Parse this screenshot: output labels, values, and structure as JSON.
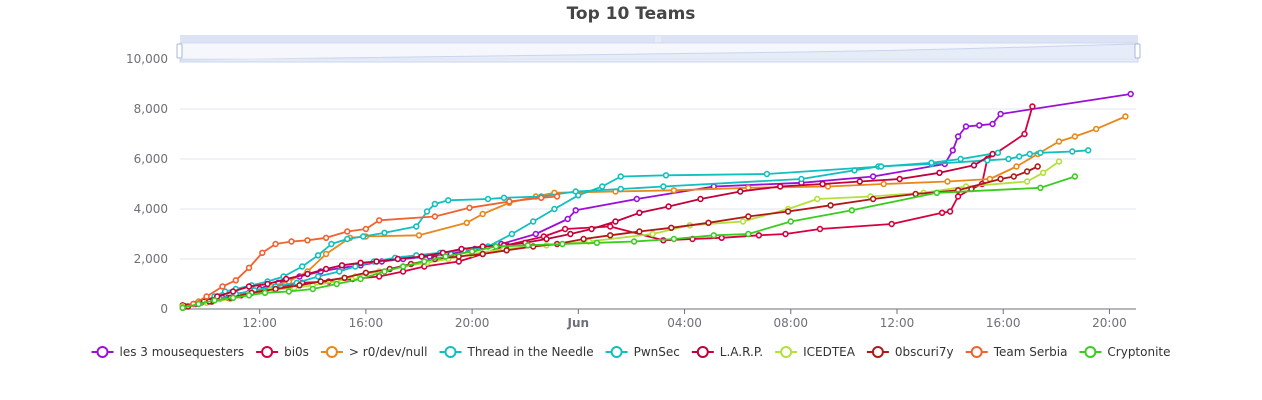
{
  "chart_data": {
    "type": "line",
    "title": "Top 10 Teams",
    "xlabel": "",
    "ylabel": "",
    "ylim": [
      0,
      10000
    ],
    "y_ticks": [
      0,
      2000,
      4000,
      6000,
      8000,
      10000
    ],
    "y_tick_labels": [
      "0",
      "2,000",
      "4,000",
      "6,000",
      "8,000",
      "10,000"
    ],
    "x_unit": "hours",
    "xlim": [
      9.0,
      45.0
    ],
    "x_ticks": [
      12,
      16,
      20,
      24,
      28,
      32,
      36,
      40,
      44
    ],
    "x_tick_labels": [
      "12:00",
      "16:00",
      "20:00",
      "Jun",
      "04:00",
      "08:00",
      "12:00",
      "16:00",
      "20:00"
    ],
    "grid": true,
    "legend_position": "bottom",
    "data_zoom": true,
    "series": [
      {
        "name": "les 3 mousequesters",
        "color": "#9b10d6",
        "x": [
          9.1,
          9.6,
          10.2,
          10.6,
          11.1,
          11.6,
          12.2,
          12.7,
          13.5,
          14.3,
          15.1,
          15.8,
          16.6,
          17.4,
          18.4,
          19.2,
          20.1,
          21.1,
          22.4,
          23.6,
          23.9,
          26.2,
          29.1,
          32.4,
          35.1,
          37.8,
          38.1,
          38.3,
          38.6,
          39.1,
          39.6,
          39.9,
          44.8
        ],
        "y": [
          100,
          200,
          300,
          450,
          550,
          650,
          800,
          1050,
          1300,
          1500,
          1650,
          1750,
          1900,
          2000,
          2100,
          2200,
          2400,
          2600,
          3000,
          3600,
          3950,
          4400,
          4900,
          5050,
          5300,
          5800,
          6350,
          6900,
          7300,
          7350,
          7400,
          7800,
          8600
        ]
      },
      {
        "name": "bi0s",
        "color": "#d6003f",
        "x": [
          9.1,
          10.2,
          10.8,
          11.3,
          12.0,
          12.8,
          13.6,
          14.6,
          15.5,
          16.5,
          17.4,
          18.2,
          19.5,
          20.4,
          21.3,
          22.7,
          23.5,
          25.2,
          27.2,
          28.3,
          29.4,
          30.8,
          31.8,
          33.1,
          35.8,
          37.7,
          38.0,
          38.3,
          38.8,
          39.2,
          39.4,
          40.8,
          41.1
        ],
        "y": [
          150,
          300,
          450,
          550,
          800,
          900,
          1050,
          1100,
          1200,
          1300,
          1500,
          1700,
          1900,
          2200,
          2550,
          2900,
          3200,
          3300,
          2750,
          2800,
          2850,
          2950,
          3000,
          3200,
          3400,
          3850,
          3900,
          4500,
          4800,
          5000,
          6000,
          7000,
          8100
        ]
      },
      {
        "name": "> r0/dev/null",
        "color": "#e8881a",
        "x": [
          9.1,
          9.7,
          10.3,
          11.2,
          11.8,
          12.4,
          13.1,
          13.8,
          14.5,
          15.4,
          16.0,
          18.0,
          19.8,
          20.4,
          21.4,
          22.4,
          23.1,
          25.4,
          27.6,
          30.4,
          33.4,
          35.5,
          37.9,
          39.5,
          40.5,
          41.3,
          42.1,
          42.7,
          43.5,
          44.6
        ],
        "y": [
          100,
          300,
          400,
          550,
          700,
          900,
          1100,
          1500,
          2200,
          2850,
          2900,
          2950,
          3450,
          3800,
          4250,
          4500,
          4650,
          4700,
          4750,
          4850,
          4900,
          5000,
          5100,
          5200,
          5700,
          6200,
          6700,
          6900,
          7200,
          7700
        ]
      },
      {
        "name": "Thread in the Needle",
        "color": "#12bfbf",
        "x": [
          9.1,
          9.5,
          9.9,
          10.3,
          10.7,
          11.1,
          11.7,
          12.3,
          12.9,
          13.6,
          14.2,
          14.7,
          15.3,
          15.9,
          16.7,
          17.9,
          18.3,
          18.6,
          19.1,
          20.6,
          21.2,
          22.6,
          23.9,
          25.6,
          27.2,
          32.4,
          34.4,
          35.3,
          37.3,
          39.4,
          40.2,
          40.6,
          41.0,
          41.4,
          42.6,
          43.2
        ],
        "y": [
          50,
          200,
          300,
          500,
          700,
          800,
          950,
          1100,
          1300,
          1700,
          2150,
          2600,
          2800,
          2900,
          3050,
          3300,
          3900,
          4200,
          4350,
          4400,
          4450,
          4500,
          4700,
          4800,
          4900,
          5200,
          5550,
          5700,
          5800,
          5950,
          6000,
          6100,
          6200,
          6250,
          6300,
          6350
        ]
      },
      {
        "name": "PwnSec",
        "color": "#12bfbf",
        "x": [
          9.2,
          9.8,
          10.5,
          11.1,
          11.8,
          12.6,
          13.4,
          14.2,
          15.0,
          15.6,
          16.3,
          17.1,
          17.9,
          18.8,
          19.7,
          20.6,
          21.5,
          22.3,
          23.1,
          24.0,
          24.9,
          25.6,
          27.3,
          31.1,
          35.4,
          37.3,
          38.4,
          39.8
        ],
        "y": [
          100,
          250,
          400,
          600,
          750,
          900,
          1050,
          1300,
          1500,
          1700,
          1900,
          2050,
          2150,
          2250,
          2350,
          2500,
          3000,
          3500,
          4000,
          4550,
          4900,
          5300,
          5350,
          5400,
          5700,
          5850,
          6000,
          6250
        ]
      },
      {
        "name": "L.A.R.P.",
        "color": "#c2003a",
        "x": [
          9.2,
          9.9,
          10.4,
          11.0,
          11.6,
          12.3,
          13.0,
          13.8,
          14.5,
          15.1,
          15.8,
          16.4,
          17.2,
          18.1,
          18.9,
          19.6,
          20.4,
          21.2,
          22.0,
          22.8,
          23.7,
          24.5,
          25.4,
          26.3,
          27.4,
          28.6,
          30.1,
          31.6,
          33.2,
          34.6,
          36.1,
          37.6,
          38.9,
          39.6
        ],
        "y": [
          100,
          300,
          500,
          700,
          900,
          1000,
          1200,
          1400,
          1600,
          1750,
          1850,
          1900,
          2000,
          2100,
          2250,
          2400,
          2500,
          2550,
          2650,
          2800,
          3000,
          3200,
          3500,
          3850,
          4100,
          4400,
          4700,
          4900,
          5000,
          5100,
          5200,
          5450,
          5750,
          6200
        ]
      },
      {
        "name": "ICEDTEA",
        "color": "#b3e03a",
        "x": [
          9.1,
          10.0,
          10.9,
          11.6,
          12.4,
          13.3,
          14.0,
          14.9,
          15.6,
          16.5,
          17.4,
          18.3,
          19.1,
          20.0,
          21.2,
          22.8,
          24.4,
          26.8,
          28.2,
          30.2,
          31.9,
          33.0,
          35.0,
          37.0,
          38.6,
          40.9,
          41.5,
          42.1
        ],
        "y": [
          100,
          250,
          400,
          600,
          750,
          850,
          950,
          1100,
          1300,
          1500,
          1700,
          1850,
          2000,
          2200,
          2400,
          2550,
          2700,
          3000,
          3350,
          3500,
          4000,
          4400,
          4500,
          4650,
          4900,
          5100,
          5450,
          5900
        ]
      },
      {
        "name": "0bscuri7y",
        "color": "#b31818",
        "x": [
          9.3,
          10.1,
          10.9,
          11.7,
          12.6,
          13.5,
          14.3,
          15.2,
          16.0,
          16.9,
          17.7,
          18.6,
          19.5,
          20.4,
          21.3,
          22.3,
          23.2,
          24.2,
          25.2,
          26.3,
          27.5,
          28.9,
          30.4,
          31.9,
          33.5,
          35.1,
          36.7,
          38.3,
          39.9,
          40.4,
          40.9,
          41.3
        ],
        "y": [
          100,
          300,
          450,
          650,
          800,
          950,
          1100,
          1250,
          1450,
          1600,
          1800,
          2000,
          2100,
          2200,
          2350,
          2500,
          2600,
          2800,
          2950,
          3100,
          3250,
          3450,
          3700,
          3900,
          4150,
          4400,
          4600,
          4750,
          5200,
          5300,
          5500,
          5700
        ]
      },
      {
        "name": "Team Serbia",
        "color": "#f0622e",
        "x": [
          9.1,
          9.5,
          10.0,
          10.6,
          11.1,
          11.6,
          12.1,
          12.6,
          13.2,
          13.8,
          14.5,
          15.3,
          16.0,
          16.5,
          18.6,
          19.9,
          21.4,
          22.6,
          23.2
        ],
        "y": [
          50,
          200,
          500,
          900,
          1150,
          1650,
          2250,
          2600,
          2700,
          2750,
          2850,
          3100,
          3200,
          3550,
          3700,
          4050,
          4300,
          4450,
          4500
        ]
      },
      {
        "name": "Cryptonite",
        "color": "#3acd20",
        "x": [
          9.1,
          9.7,
          10.3,
          11.0,
          11.6,
          12.2,
          13.1,
          14.0,
          14.9,
          15.8,
          16.7,
          17.4,
          18.2,
          19.0,
          20.0,
          20.9,
          22.1,
          23.4,
          24.7,
          26.1,
          27.6,
          29.1,
          30.4,
          32.0,
          34.3,
          37.5,
          41.4,
          42.7
        ],
        "y": [
          50,
          200,
          350,
          450,
          550,
          650,
          700,
          800,
          1000,
          1200,
          1500,
          1700,
          1900,
          2100,
          2300,
          2500,
          2550,
          2600,
          2650,
          2700,
          2800,
          2950,
          3000,
          3500,
          3950,
          4650,
          4850,
          5300
        ]
      }
    ]
  }
}
